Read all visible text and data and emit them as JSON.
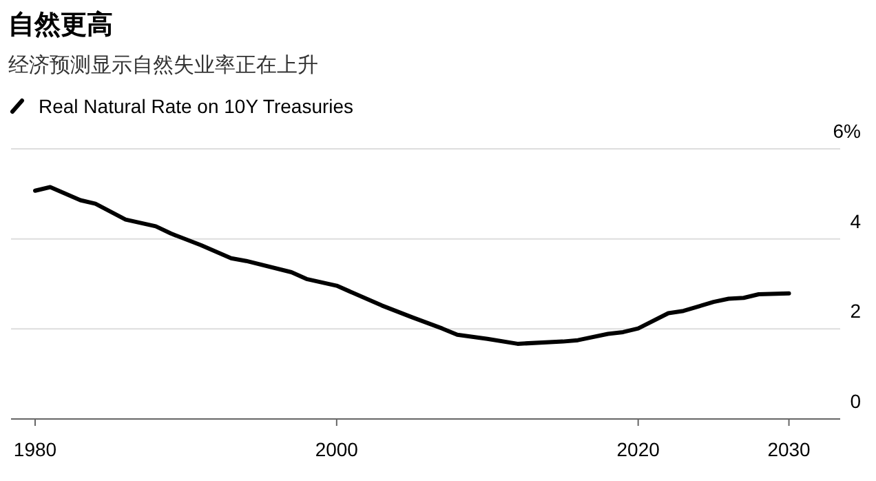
{
  "chart_data": {
    "type": "line",
    "title": "自然更高",
    "subtitle": "经济预测显示自然失业率正在上升",
    "x": [
      1980,
      1981,
      1983,
      1984,
      1986,
      1988,
      1989,
      1991,
      1993,
      1994,
      1997,
      1998,
      2000,
      2003,
      2005,
      2007,
      2008,
      2010,
      2012,
      2015,
      2016,
      2018,
      2019,
      2020,
      2022,
      2023,
      2025,
      2026,
      2027,
      2028,
      2030
    ],
    "series": [
      {
        "name": "Real Natural Rate on 10Y Treasuries",
        "color": "#000000",
        "values": [
          5.07,
          5.15,
          4.86,
          4.78,
          4.43,
          4.28,
          4.12,
          3.86,
          3.57,
          3.51,
          3.26,
          3.11,
          2.96,
          2.52,
          2.26,
          2.01,
          1.87,
          1.78,
          1.67,
          1.72,
          1.75,
          1.89,
          1.93,
          2.01,
          2.35,
          2.4,
          2.6,
          2.67,
          2.69,
          2.77,
          2.79
        ]
      }
    ],
    "xlim": [
      1978.4,
      2033.4
    ],
    "xticks": [
      1980,
      2000,
      2020,
      2030
    ],
    "ylim": [
      0,
      6
    ],
    "yticks": [
      0,
      2,
      4,
      {
        "value": 6,
        "label": "6%"
      }
    ],
    "grid": "y",
    "legend": "top left",
    "line_style": "solid",
    "marker": "none"
  }
}
